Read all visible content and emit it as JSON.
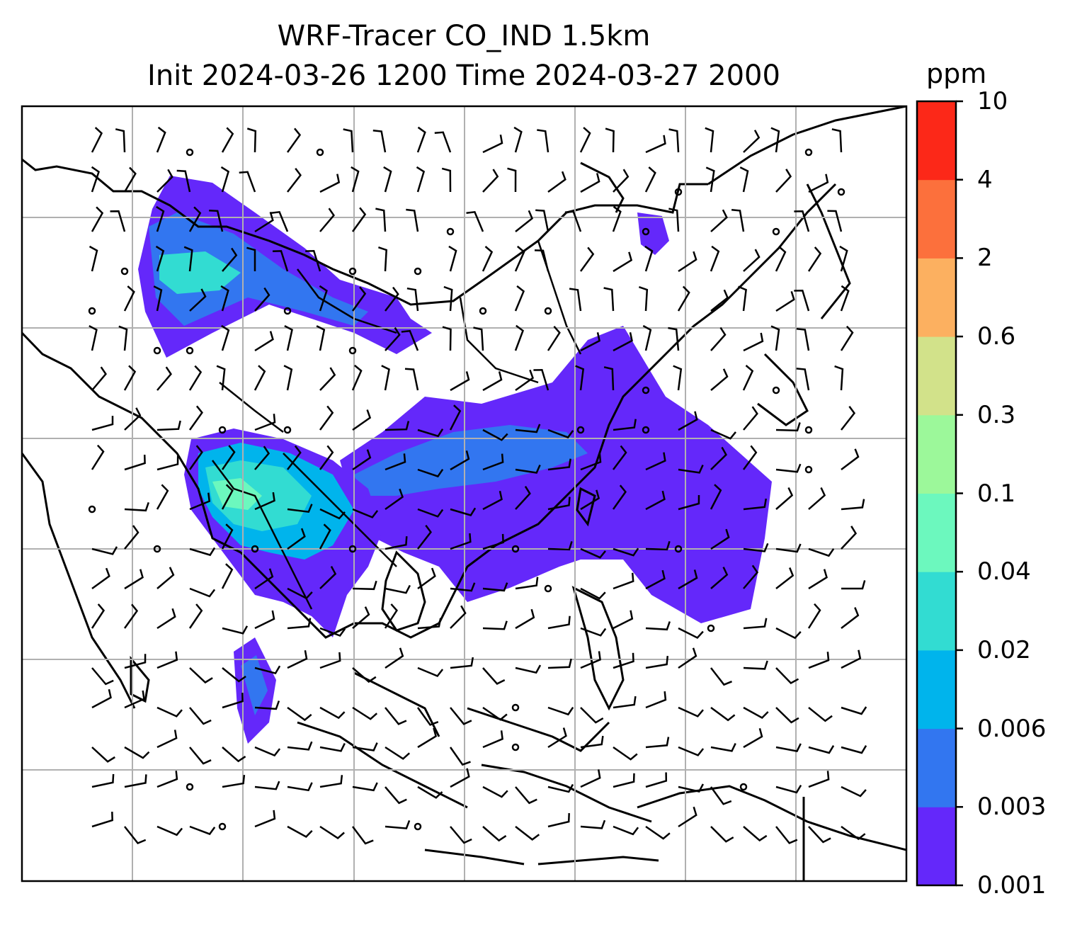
{
  "title": {
    "line1": "WRF-Tracer CO_IND 1.5km",
    "line2": "Init 2024-03-26 1200 Time 2024-03-27 2000"
  },
  "colorbar": {
    "unit": "ppm",
    "levels": [
      "0.001",
      "0.003",
      "0.006",
      "0.02",
      "0.04",
      "0.1",
      "0.3",
      "0.6",
      "2",
      "4",
      "10"
    ],
    "colors": [
      "#6428fa",
      "#3276f0",
      "#00b4ec",
      "#32dcd2",
      "#6cf8be",
      "#9cf89a",
      "#d2e28a",
      "#fcb060",
      "#fc703c",
      "#fc2818"
    ]
  },
  "map": {
    "projection_gridlines": "on",
    "features": [
      "coastlines",
      "country-borders",
      "wind-barbs",
      "tracer-concentration"
    ]
  }
}
